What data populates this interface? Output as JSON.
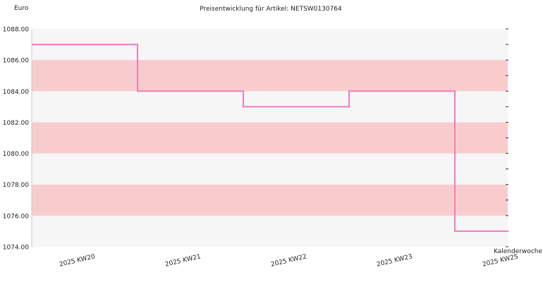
{
  "chart_data": {
    "type": "line",
    "step": true,
    "title": "Preisentwicklung für Artikel: NETSW0130764",
    "ylabel": "Euro",
    "xlabel": "Kalenderwoche",
    "ylim": [
      1074,
      1088
    ],
    "yticks": [
      "1074.00",
      "1076.00",
      "1078.00",
      "1080.00",
      "1082.00",
      "1084.00",
      "1086.00",
      "1088.00"
    ],
    "xticks": [
      "2025 KW20",
      "2025 KW21",
      "2025 KW22",
      "2025 KW23",
      "2025 KW25"
    ],
    "series": [
      {
        "values": [
          1087,
          1084,
          1083,
          1084,
          1075
        ]
      }
    ],
    "grid": true,
    "colors": {
      "line": "#f07cc0",
      "band_light": "#f6f6f6",
      "band_shaded": "#f8cccc"
    }
  }
}
